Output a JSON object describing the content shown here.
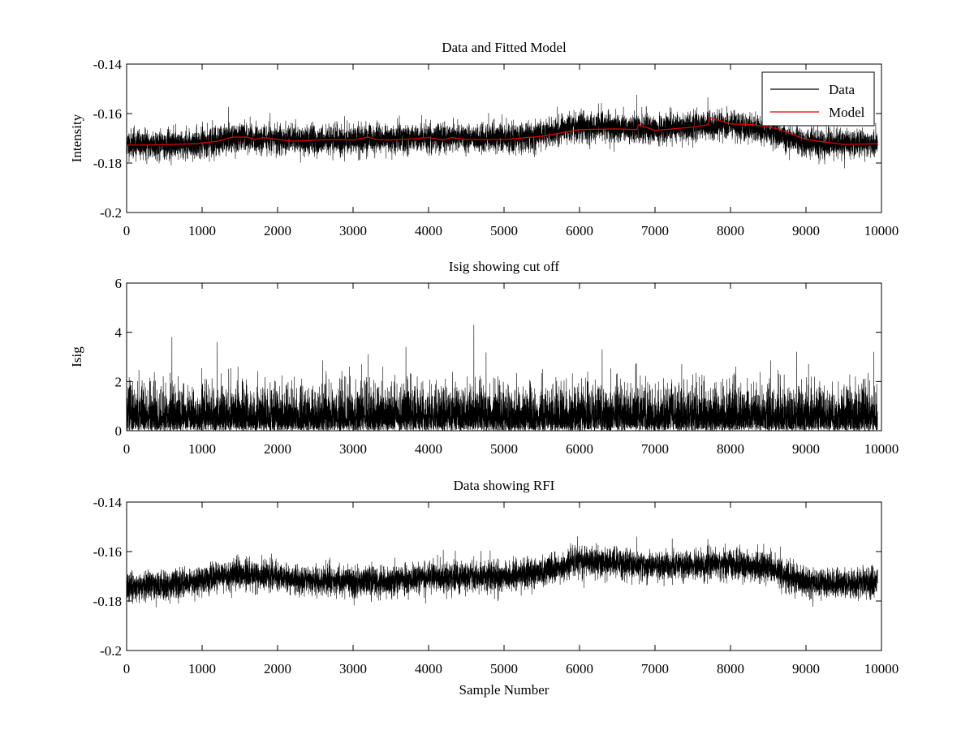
{
  "chart_data": [
    {
      "type": "line",
      "title": "Data and Fitted Model",
      "xlabel": "",
      "ylabel": "Intensity",
      "xlim": [
        0,
        10000
      ],
      "ylim": [
        -0.2,
        -0.14
      ],
      "xticks": [
        0,
        1000,
        2000,
        3000,
        4000,
        5000,
        6000,
        7000,
        8000,
        9000,
        10000
      ],
      "yticks": [
        -0.2,
        -0.18,
        -0.16,
        -0.14
      ],
      "grid": false,
      "legend": {
        "position": "top-right",
        "entries": [
          "Data",
          "Model"
        ]
      },
      "series": [
        {
          "name": "Data",
          "color": "#000000",
          "kind": "noisy",
          "n": 9950,
          "trend_x": [
            0,
            500,
            1000,
            1500,
            2000,
            2500,
            3000,
            3500,
            4000,
            4500,
            5000,
            5500,
            6000,
            6500,
            7000,
            7500,
            8000,
            8500,
            9000,
            9500,
            9950
          ],
          "trend_y": [
            -0.1725,
            -0.1725,
            -0.172,
            -0.1695,
            -0.1705,
            -0.171,
            -0.1705,
            -0.1705,
            -0.1695,
            -0.17,
            -0.17,
            -0.1685,
            -0.165,
            -0.166,
            -0.1665,
            -0.165,
            -0.1645,
            -0.167,
            -0.172,
            -0.172,
            -0.172
          ],
          "noise_sd": 0.0028,
          "spikes": [
            [
              6760,
              -0.1525
            ],
            [
              7700,
              -0.1535
            ],
            [
              6250,
              -0.156
            ]
          ],
          "seed": 11
        },
        {
          "name": "Model",
          "color": "#e00000",
          "kind": "smooth",
          "x": [
            0,
            300,
            600,
            900,
            1200,
            1400,
            1600,
            1700,
            1800,
            2000,
            2200,
            2500,
            2800,
            3000,
            3200,
            3300,
            3500,
            3800,
            4000,
            4200,
            4300,
            4500,
            5000,
            5500,
            6000,
            6500,
            6760,
            6780,
            7000,
            7500,
            7700,
            7720,
            8000,
            8300,
            8600,
            9000,
            9500,
            9950
          ],
          "y": [
            -0.1727,
            -0.1727,
            -0.1725,
            -0.1722,
            -0.1712,
            -0.1695,
            -0.1695,
            -0.1705,
            -0.1697,
            -0.1705,
            -0.1712,
            -0.1707,
            -0.1705,
            -0.1707,
            -0.1695,
            -0.1705,
            -0.1707,
            -0.1702,
            -0.1697,
            -0.1707,
            -0.1697,
            -0.1705,
            -0.1705,
            -0.1692,
            -0.1665,
            -0.1662,
            -0.1665,
            -0.1645,
            -0.1668,
            -0.1655,
            -0.1645,
            -0.1615,
            -0.1642,
            -0.1645,
            -0.166,
            -0.1705,
            -0.1725,
            -0.1722
          ]
        }
      ]
    },
    {
      "type": "line",
      "title": "Isig showing cut off",
      "xlabel": "",
      "ylabel": "Isig",
      "xlim": [
        0,
        10000
      ],
      "ylim": [
        0,
        6
      ],
      "xticks": [
        0,
        1000,
        2000,
        3000,
        4000,
        5000,
        6000,
        7000,
        8000,
        9000,
        10000
      ],
      "yticks": [
        0,
        2,
        4,
        6
      ],
      "grid": false,
      "series": [
        {
          "color": "#000000",
          "kind": "abs-noise",
          "n": 9950,
          "scale": 0.8,
          "spikes": [
            [
              600,
              3.8
            ],
            [
              4600,
              4.3
            ],
            [
              3700,
              3.4
            ],
            [
              1200,
              3.6
            ],
            [
              6300,
              3.3
            ],
            [
              9900,
              3.2
            ],
            [
              3200,
              3.1
            ]
          ],
          "seed": 23
        }
      ]
    },
    {
      "type": "line",
      "title": "Data showing RFI",
      "xlabel": "Sample Number",
      "ylabel": "",
      "xlim": [
        0,
        10000
      ],
      "ylim": [
        -0.2,
        -0.14
      ],
      "xticks": [
        0,
        1000,
        2000,
        3000,
        4000,
        5000,
        6000,
        7000,
        8000,
        9000,
        10000
      ],
      "yticks": [
        -0.2,
        -0.18,
        -0.16,
        -0.14
      ],
      "grid": false,
      "series": [
        {
          "color": "#000000",
          "kind": "noisy",
          "n": 9950,
          "trend_x": [
            0,
            500,
            1000,
            1500,
            2000,
            2500,
            3000,
            3500,
            4000,
            4500,
            5000,
            5500,
            6000,
            6500,
            7000,
            7500,
            8000,
            8500,
            9000,
            9500,
            9950
          ],
          "trend_y": [
            -0.1745,
            -0.1735,
            -0.1715,
            -0.169,
            -0.1705,
            -0.172,
            -0.172,
            -0.1725,
            -0.1705,
            -0.1705,
            -0.1705,
            -0.1685,
            -0.164,
            -0.1645,
            -0.166,
            -0.1655,
            -0.165,
            -0.1665,
            -0.173,
            -0.173,
            -0.1725
          ],
          "noise_sd": 0.0028,
          "spikes": [
            [
              6760,
              -0.154
            ],
            [
              7700,
              -0.155
            ],
            [
              4600,
              -0.162
            ]
          ],
          "seed": 37
        }
      ]
    }
  ]
}
